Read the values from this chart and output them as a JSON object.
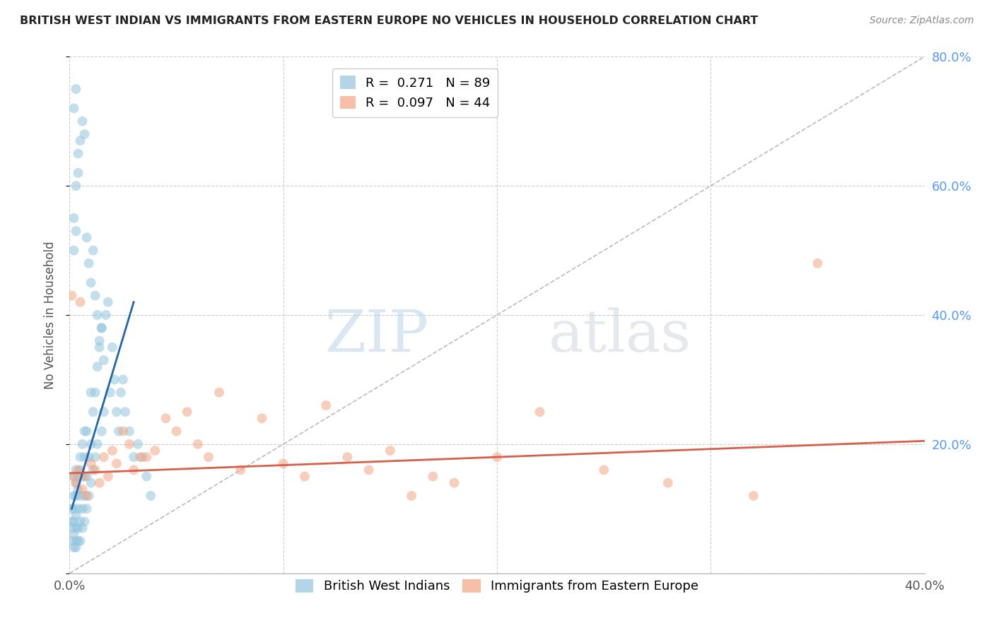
{
  "title": "BRITISH WEST INDIAN VS IMMIGRANTS FROM EASTERN EUROPE NO VEHICLES IN HOUSEHOLD CORRELATION CHART",
  "source": "Source: ZipAtlas.com",
  "ylabel": "No Vehicles in Household",
  "ylim": [
    0.0,
    0.8
  ],
  "xlim": [
    0.0,
    0.4
  ],
  "yticks": [
    0.0,
    0.2,
    0.4,
    0.6,
    0.8
  ],
  "ytick_labels": [
    "",
    "20.0%",
    "40.0%",
    "60.0%",
    "80.0%"
  ],
  "xticks": [
    0.0,
    0.1,
    0.2,
    0.3,
    0.4
  ],
  "xtick_labels": [
    "0.0%",
    "",
    "",
    "",
    "40.0%"
  ],
  "legend1_R": "0.271",
  "legend1_N": "89",
  "legend2_R": "0.097",
  "legend2_N": "44",
  "blue_color": "#92c5de",
  "pink_color": "#f4a582",
  "blue_line_color": "#2166ac",
  "pink_line_color": "#d6604d",
  "watermark_zip": "ZIP",
  "watermark_atlas": "atlas",
  "background_color": "#ffffff",
  "grid_color": "#cccccc",
  "blue_scatter_x": [
    0.001,
    0.001,
    0.001,
    0.001,
    0.002,
    0.002,
    0.002,
    0.002,
    0.002,
    0.002,
    0.003,
    0.003,
    0.003,
    0.003,
    0.003,
    0.003,
    0.003,
    0.004,
    0.004,
    0.004,
    0.004,
    0.004,
    0.005,
    0.005,
    0.005,
    0.005,
    0.005,
    0.006,
    0.006,
    0.006,
    0.006,
    0.007,
    0.007,
    0.007,
    0.007,
    0.008,
    0.008,
    0.008,
    0.009,
    0.009,
    0.01,
    0.01,
    0.01,
    0.011,
    0.011,
    0.012,
    0.012,
    0.013,
    0.013,
    0.014,
    0.015,
    0.015,
    0.016,
    0.017,
    0.018,
    0.019,
    0.02,
    0.021,
    0.022,
    0.023,
    0.024,
    0.025,
    0.026,
    0.028,
    0.03,
    0.032,
    0.034,
    0.036,
    0.038,
    0.002,
    0.002,
    0.003,
    0.003,
    0.004,
    0.004,
    0.005,
    0.006,
    0.007,
    0.008,
    0.009,
    0.01,
    0.011,
    0.012,
    0.013,
    0.014,
    0.015,
    0.016,
    0.002,
    0.003
  ],
  "blue_scatter_y": [
    0.05,
    0.07,
    0.08,
    0.1,
    0.04,
    0.06,
    0.08,
    0.1,
    0.12,
    0.15,
    0.04,
    0.05,
    0.07,
    0.09,
    0.12,
    0.14,
    0.16,
    0.05,
    0.07,
    0.1,
    0.13,
    0.15,
    0.05,
    0.08,
    0.12,
    0.16,
    0.18,
    0.07,
    0.1,
    0.15,
    0.2,
    0.08,
    0.12,
    0.18,
    0.22,
    0.1,
    0.15,
    0.22,
    0.12,
    0.18,
    0.14,
    0.2,
    0.28,
    0.16,
    0.25,
    0.18,
    0.28,
    0.2,
    0.32,
    0.35,
    0.22,
    0.38,
    0.25,
    0.4,
    0.42,
    0.28,
    0.35,
    0.3,
    0.25,
    0.22,
    0.28,
    0.3,
    0.25,
    0.22,
    0.18,
    0.2,
    0.18,
    0.15,
    0.12,
    0.5,
    0.55,
    0.53,
    0.6,
    0.65,
    0.62,
    0.67,
    0.7,
    0.68,
    0.52,
    0.48,
    0.45,
    0.5,
    0.43,
    0.4,
    0.36,
    0.38,
    0.33,
    0.72,
    0.75
  ],
  "pink_scatter_x": [
    0.001,
    0.002,
    0.003,
    0.004,
    0.005,
    0.006,
    0.007,
    0.008,
    0.01,
    0.012,
    0.014,
    0.016,
    0.018,
    0.02,
    0.022,
    0.025,
    0.028,
    0.03,
    0.033,
    0.036,
    0.04,
    0.045,
    0.05,
    0.055,
    0.06,
    0.065,
    0.07,
    0.08,
    0.09,
    0.1,
    0.11,
    0.12,
    0.13,
    0.14,
    0.15,
    0.16,
    0.17,
    0.18,
    0.2,
    0.22,
    0.25,
    0.28,
    0.32,
    0.35
  ],
  "pink_scatter_y": [
    0.43,
    0.15,
    0.14,
    0.16,
    0.42,
    0.13,
    0.15,
    0.12,
    0.17,
    0.16,
    0.14,
    0.18,
    0.15,
    0.19,
    0.17,
    0.22,
    0.2,
    0.16,
    0.18,
    0.18,
    0.19,
    0.24,
    0.22,
    0.25,
    0.2,
    0.18,
    0.28,
    0.16,
    0.24,
    0.17,
    0.15,
    0.26,
    0.18,
    0.16,
    0.19,
    0.12,
    0.15,
    0.14,
    0.18,
    0.25,
    0.16,
    0.14,
    0.12,
    0.48
  ],
  "blue_line_x": [
    0.001,
    0.03
  ],
  "blue_line_y": [
    0.1,
    0.42
  ],
  "pink_line_x": [
    0.0,
    0.4
  ],
  "pink_line_y": [
    0.155,
    0.205
  ],
  "diag_line_x": [
    0.0,
    0.4
  ],
  "diag_line_y": [
    0.0,
    0.8
  ]
}
